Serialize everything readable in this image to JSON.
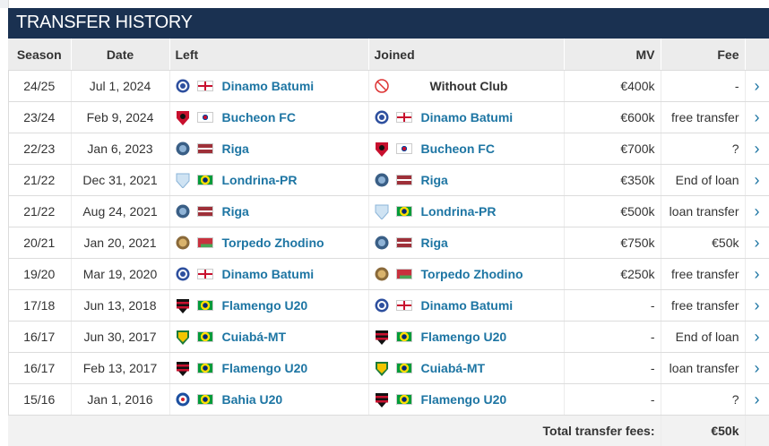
{
  "widget": {
    "title": "TRANSFER HISTORY"
  },
  "columns": {
    "season": "Season",
    "date": "Date",
    "left": "Left",
    "joined": "Joined",
    "mv": "MV",
    "fee": "Fee"
  },
  "rows": [
    {
      "season": "24/25",
      "date": "Jul 1, 2024",
      "left": {
        "club": "Dinamo Batumi",
        "crest": "dinamo",
        "flag": "georgia"
      },
      "joined": {
        "club": "Without Club",
        "crest": "noclub",
        "flag": ""
      },
      "mv": "€400k",
      "fee": "-"
    },
    {
      "season": "23/24",
      "date": "Feb 9, 2024",
      "left": {
        "club": "Bucheon FC",
        "crest": "bucheon",
        "flag": "korea"
      },
      "joined": {
        "club": "Dinamo Batumi",
        "crest": "dinamo",
        "flag": "georgia"
      },
      "mv": "€600k",
      "fee": "free transfer"
    },
    {
      "season": "22/23",
      "date": "Jan 6, 2023",
      "left": {
        "club": "Riga",
        "crest": "riga",
        "flag": "latvia"
      },
      "joined": {
        "club": "Bucheon FC",
        "crest": "bucheon",
        "flag": "korea"
      },
      "mv": "€700k",
      "fee": "?"
    },
    {
      "season": "21/22",
      "date": "Dec 31, 2021",
      "left": {
        "club": "Londrina-PR",
        "crest": "londrina",
        "flag": "brazil"
      },
      "joined": {
        "club": "Riga",
        "crest": "riga",
        "flag": "latvia"
      },
      "mv": "€350k",
      "fee": "End of loan"
    },
    {
      "season": "21/22",
      "date": "Aug 24, 2021",
      "left": {
        "club": "Riga",
        "crest": "riga",
        "flag": "latvia"
      },
      "joined": {
        "club": "Londrina-PR",
        "crest": "londrina",
        "flag": "brazil"
      },
      "mv": "€500k",
      "fee": "loan transfer"
    },
    {
      "season": "20/21",
      "date": "Jan 20, 2021",
      "left": {
        "club": "Torpedo Zhodino",
        "crest": "torpedo",
        "flag": "belarus"
      },
      "joined": {
        "club": "Riga",
        "crest": "riga",
        "flag": "latvia"
      },
      "mv": "€750k",
      "fee": "€50k"
    },
    {
      "season": "19/20",
      "date": "Mar 19, 2020",
      "left": {
        "club": "Dinamo Batumi",
        "crest": "dinamo",
        "flag": "georgia"
      },
      "joined": {
        "club": "Torpedo Zhodino",
        "crest": "torpedo",
        "flag": "belarus"
      },
      "mv": "€250k",
      "fee": "free transfer"
    },
    {
      "season": "17/18",
      "date": "Jun 13, 2018",
      "left": {
        "club": "Flamengo U20",
        "crest": "flamengo",
        "flag": "brazil"
      },
      "joined": {
        "club": "Dinamo Batumi",
        "crest": "dinamo",
        "flag": "georgia"
      },
      "mv": "-",
      "fee": "free transfer"
    },
    {
      "season": "16/17",
      "date": "Jun 30, 2017",
      "left": {
        "club": "Cuiabá-MT",
        "crest": "cuiaba",
        "flag": "brazil"
      },
      "joined": {
        "club": "Flamengo U20",
        "crest": "flamengo",
        "flag": "brazil"
      },
      "mv": "-",
      "fee": "End of loan"
    },
    {
      "season": "16/17",
      "date": "Feb 13, 2017",
      "left": {
        "club": "Flamengo U20",
        "crest": "flamengo",
        "flag": "brazil"
      },
      "joined": {
        "club": "Cuiabá-MT",
        "crest": "cuiaba",
        "flag": "brazil"
      },
      "mv": "-",
      "fee": "loan transfer"
    },
    {
      "season": "15/16",
      "date": "Jan 1, 2016",
      "left": {
        "club": "Bahia U20",
        "crest": "bahia",
        "flag": "brazil"
      },
      "joined": {
        "club": "Flamengo U20",
        "crest": "flamengo",
        "flag": "brazil"
      },
      "mv": "-",
      "fee": "?"
    }
  ],
  "footer": {
    "label": "Total transfer fees:",
    "value": "€50k"
  },
  "colors": {
    "header_bg": "#1a3151",
    "link": "#1d75a3",
    "row_border": "#dcdcdc"
  }
}
